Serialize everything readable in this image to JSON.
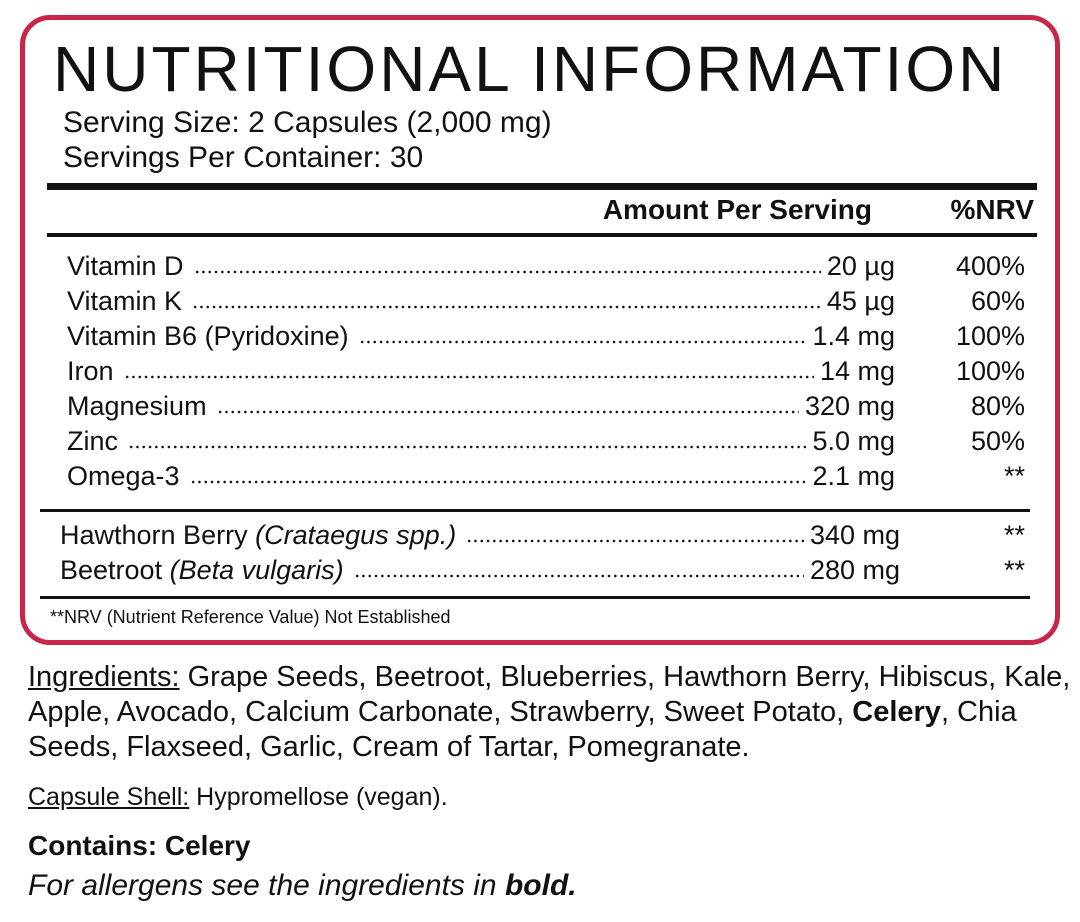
{
  "label": {
    "title": "NUTRITIONAL INFORMATION",
    "serving_size": "Serving Size: 2 Capsules (2,000 mg)",
    "servings_per_container": "Servings Per Container: 30",
    "header": {
      "amount": "Amount Per Serving",
      "nrv": "%NRV"
    },
    "nutrients": [
      {
        "name": "Vitamin D",
        "amount": "20 µg",
        "nrv": "400%"
      },
      {
        "name": "Vitamin K",
        "amount": "45 µg",
        "nrv": "60%"
      },
      {
        "name": "Vitamin B6 (Pyridoxine)",
        "amount": "1.4 mg",
        "nrv": "100%"
      },
      {
        "name": "Iron",
        "amount": "14 mg",
        "nrv": "100%"
      },
      {
        "name": "Magnesium",
        "amount": "320 mg",
        "nrv": "80%"
      },
      {
        "name": "Zinc",
        "amount": "5.0 mg",
        "nrv": "50%"
      },
      {
        "name": "Omega-3",
        "amount": "2.1 mg",
        "nrv": "**"
      }
    ],
    "botanicals": [
      {
        "name": "Hawthorn Berry",
        "latin": "(Crataegus spp.)",
        "amount": "340 mg",
        "nrv": "**"
      },
      {
        "name": "Beetroot",
        "latin": "(Beta vulgaris)",
        "amount": "280 mg",
        "nrv": "**"
      }
    ],
    "footnote": "**NRV (Nutrient Reference Value) Not Established"
  },
  "ingredients": {
    "heading": "Ingredients:",
    "text_before": "Grape Seeds, Beetroot, Blueberries, Hawthorn Berry, Hibiscus, Kale, Apple, Avocado, Calcium Carbonate,  Strawberry, Sweet Potato,",
    "allergen": "Celery",
    "text_after": ", Chia Seeds, Flaxseed, Garlic, Cream of Tartar, Pomegranate."
  },
  "capsule_shell": {
    "heading": "Capsule Shell:",
    "text": "Hypromellose (vegan)."
  },
  "contains": "Contains: Celery",
  "allergen_note": {
    "text": "For allergens see the ingredients in",
    "bold": "bold."
  }
}
